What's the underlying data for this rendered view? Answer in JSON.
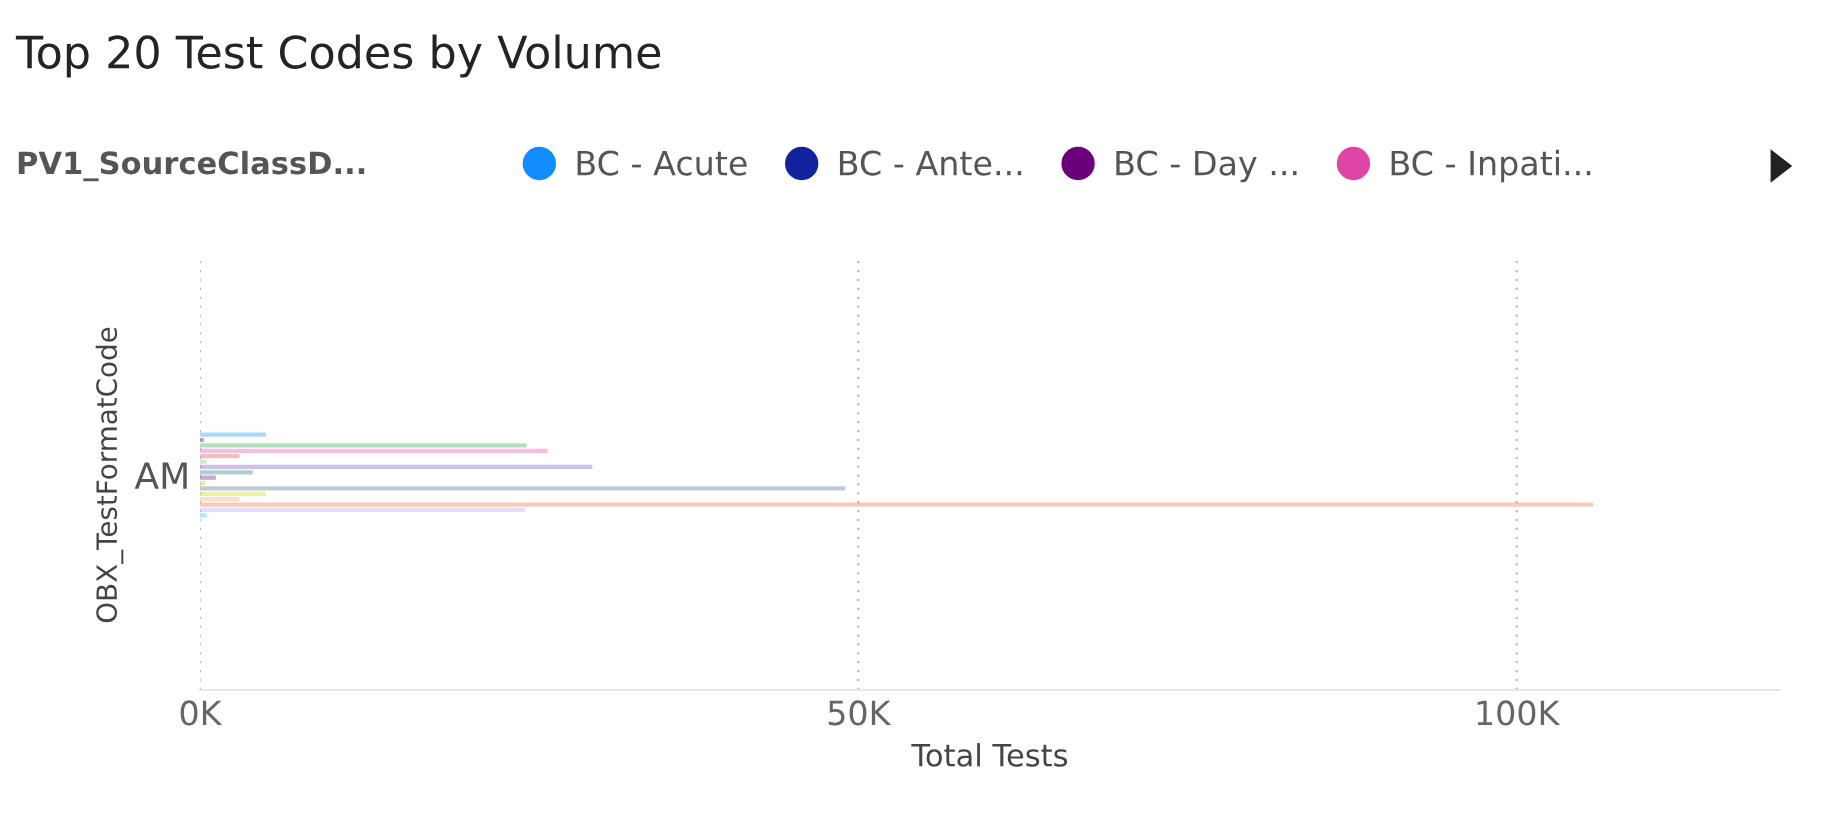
{
  "chart_data": {
    "type": "bar",
    "orientation": "horizontal",
    "title": "Top 20 Test Codes by Volume",
    "legend_title": "PV1_SourceClassD...",
    "xlabel": "Total Tests",
    "ylabel": "OBX_TestFormatCode",
    "categories": [
      "AM"
    ],
    "series": [
      {
        "name": "BC - Acute",
        "color": "#118DFF",
        "values": [
          5000
        ]
      },
      {
        "name": "BC - Ante...",
        "color": "#12239E",
        "values": [
          300
        ]
      },
      {
        "color": "#1AAB40",
        "values": [
          24800
        ]
      },
      {
        "name": "BC - Inpati...",
        "color": "#E044A7",
        "values": [
          26400
        ]
      },
      {
        "color": "#D64550",
        "values": [
          3000
        ]
      },
      {
        "color": "#5BD667",
        "values": [
          500
        ]
      },
      {
        "color": "#744EC2",
        "values": [
          29800
        ]
      },
      {
        "color": "#197278",
        "values": [
          4000
        ]
      },
      {
        "name": "BC - Day ...",
        "color": "#6B007B",
        "values": [
          1200
        ]
      },
      {
        "color": "#D9B300",
        "values": [
          400
        ]
      },
      {
        "color": "#4A6A8A",
        "values": [
          49000
        ]
      },
      {
        "color": "#C4D600",
        "values": [
          5000
        ]
      },
      {
        "color": "#FFA058",
        "values": [
          3000
        ]
      },
      {
        "color": "#E66C37",
        "values": [
          105800
        ]
      },
      {
        "color": "#B5A1FF",
        "values": [
          24700
        ]
      },
      {
        "color": "#15C6F4",
        "values": [
          500
        ]
      }
    ],
    "xlim": [
      0,
      120000
    ],
    "xticks": [
      {
        "value": 0,
        "label": "0K"
      },
      {
        "value": 50000,
        "label": "50K"
      },
      {
        "value": 100000,
        "label": "100K"
      }
    ],
    "grid": "x",
    "legend": "top left"
  }
}
